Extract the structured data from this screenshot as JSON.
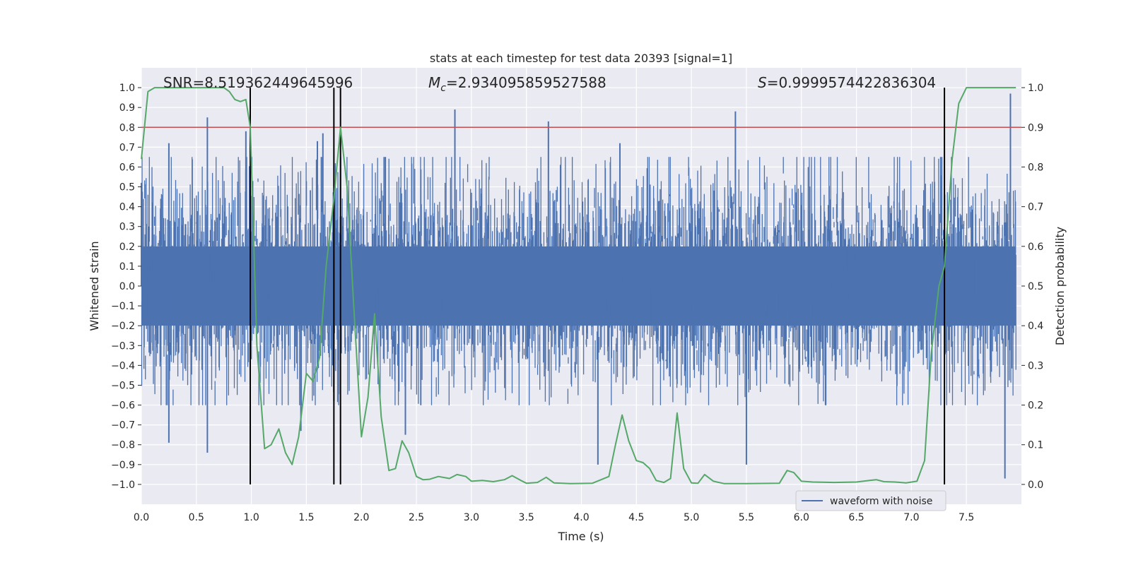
{
  "chart_data": {
    "type": "line",
    "title": "stats at each timestep for test data 20393 [signal=1]",
    "xlabel": "Time (s)",
    "ylabel_left": "Whitened strain",
    "ylabel_right": "Detection probability",
    "xlim": [
      0.0,
      8.0
    ],
    "ylim_left": [
      -1.1,
      1.1
    ],
    "ylim_right": [
      -0.05,
      1.05
    ],
    "x_ticks": [
      "0.0",
      "0.5",
      "1.0",
      "1.5",
      "2.0",
      "2.5",
      "3.0",
      "3.5",
      "4.0",
      "4.5",
      "5.0",
      "5.5",
      "6.0",
      "6.5",
      "7.0",
      "7.5"
    ],
    "x_tick_values": [
      0.0,
      0.5,
      1.0,
      1.5,
      2.0,
      2.5,
      3.0,
      3.5,
      4.0,
      4.5,
      5.0,
      5.5,
      6.0,
      6.5,
      7.0,
      7.5
    ],
    "y_left_ticks": [
      "1.0",
      "0.9",
      "0.8",
      "0.7",
      "0.6",
      "0.5",
      "0.4",
      "0.3",
      "0.2",
      "0.1",
      "0.0",
      "−0.1",
      "−0.2",
      "−0.3",
      "−0.4",
      "−0.5",
      "−0.6",
      "−0.7",
      "−0.8",
      "−0.9",
      "−1.0"
    ],
    "y_left_tick_values": [
      1.0,
      0.9,
      0.8,
      0.7,
      0.6,
      0.5,
      0.4,
      0.3,
      0.2,
      0.1,
      0.0,
      -0.1,
      -0.2,
      -0.3,
      -0.4,
      -0.5,
      -0.6,
      -0.7,
      -0.8,
      -0.9,
      -1.0
    ],
    "y_right_ticks": [
      "1.0",
      "0.9",
      "0.8",
      "0.7",
      "0.6",
      "0.5",
      "0.4",
      "0.3",
      "0.2",
      "0.1",
      "0.0"
    ],
    "y_right_tick_values": [
      1.0,
      0.9,
      0.8,
      0.7,
      0.6,
      0.5,
      0.4,
      0.3,
      0.2,
      0.1,
      0.0
    ],
    "grid": true,
    "legend": {
      "position": "bottom-right",
      "entries": [
        "waveform with noise"
      ]
    },
    "annotations": {
      "snr": "SNR=8.519362449645996",
      "mc_symbol": "M",
      "mc_subscript": "c",
      "mc_value": "=2.934095859527588",
      "s_symbol": "S",
      "s_value": "=0.9999574422836304"
    },
    "threshold": {
      "value_right": 0.9,
      "color": "#c44e52"
    },
    "crossing_lines_x": [
      0.99,
      1.75,
      1.81,
      7.3
    ],
    "colors": {
      "waveform": "#4c72b0",
      "probability": "#55a868",
      "crossing": "#000000",
      "plot_bg": "#eaeaf2",
      "grid": "#ffffff"
    },
    "series": [
      {
        "name": "waveform with noise",
        "kind": "noise-envelope",
        "typical_band": [
          -0.4,
          0.45
        ],
        "extreme_peaks": [
          {
            "x": 0.0,
            "y": 0.52
          },
          {
            "x": 0.25,
            "y": 0.72
          },
          {
            "x": 0.6,
            "y": 0.85
          },
          {
            "x": 0.95,
            "y": 0.78
          },
          {
            "x": 1.6,
            "y": 0.73
          },
          {
            "x": 1.65,
            "y": 0.77
          },
          {
            "x": 2.85,
            "y": 0.89
          },
          {
            "x": 3.7,
            "y": 0.83
          },
          {
            "x": 4.35,
            "y": 0.72
          },
          {
            "x": 5.4,
            "y": 0.88
          },
          {
            "x": 7.9,
            "y": 0.97
          }
        ],
        "extreme_troughs": [
          {
            "x": 0.25,
            "y": -0.79
          },
          {
            "x": 0.6,
            "y": -0.84
          },
          {
            "x": 1.45,
            "y": -0.73
          },
          {
            "x": 1.75,
            "y": -0.58
          },
          {
            "x": 2.4,
            "y": -0.75
          },
          {
            "x": 4.15,
            "y": -0.9
          },
          {
            "x": 5.5,
            "y": -0.9
          },
          {
            "x": 7.85,
            "y": -0.97
          }
        ]
      },
      {
        "name": "",
        "kind": "probability",
        "axis": "right",
        "x": [
          0.0,
          0.06,
          0.12,
          0.2,
          0.4,
          0.6,
          0.75,
          0.8,
          0.85,
          0.9,
          0.95,
          0.99,
          1.05,
          1.12,
          1.18,
          1.25,
          1.31,
          1.37,
          1.43,
          1.5,
          1.56,
          1.62,
          1.68,
          1.75,
          1.81,
          1.87,
          1.93,
          2.0,
          2.06,
          2.12,
          2.18,
          2.25,
          2.31,
          2.37,
          2.43,
          2.5,
          2.56,
          2.62,
          2.7,
          2.8,
          2.87,
          2.95,
          3.0,
          3.1,
          3.2,
          3.3,
          3.37,
          3.45,
          3.5,
          3.6,
          3.68,
          3.75,
          3.9,
          4.1,
          4.25,
          4.31,
          4.37,
          4.43,
          4.5,
          4.56,
          4.62,
          4.68,
          4.75,
          4.81,
          4.87,
          4.93,
          5.0,
          5.06,
          5.12,
          5.2,
          5.3,
          5.5,
          5.8,
          5.87,
          5.93,
          6.0,
          6.1,
          6.3,
          6.5,
          6.62,
          6.68,
          6.75,
          6.85,
          6.95,
          7.05,
          7.12,
          7.18,
          7.25,
          7.3,
          7.37,
          7.43,
          7.5,
          7.6,
          7.75,
          7.95
        ],
        "y": [
          0.82,
          0.99,
          1.0,
          1.0,
          1.0,
          1.0,
          1.0,
          0.99,
          0.97,
          0.965,
          0.97,
          0.9,
          0.35,
          0.09,
          0.1,
          0.14,
          0.08,
          0.05,
          0.12,
          0.28,
          0.26,
          0.32,
          0.55,
          0.72,
          0.9,
          0.75,
          0.45,
          0.12,
          0.22,
          0.43,
          0.17,
          0.035,
          0.04,
          0.11,
          0.08,
          0.02,
          0.012,
          0.013,
          0.02,
          0.015,
          0.025,
          0.02,
          0.008,
          0.01,
          0.007,
          0.012,
          0.022,
          0.01,
          0.003,
          0.005,
          0.018,
          0.004,
          0.002,
          0.003,
          0.02,
          0.1,
          0.175,
          0.11,
          0.06,
          0.055,
          0.04,
          0.01,
          0.005,
          0.015,
          0.18,
          0.04,
          0.004,
          0.003,
          0.025,
          0.008,
          0.002,
          0.002,
          0.003,
          0.035,
          0.03,
          0.008,
          0.006,
          0.005,
          0.006,
          0.01,
          0.012,
          0.007,
          0.006,
          0.004,
          0.008,
          0.06,
          0.33,
          0.5,
          0.55,
          0.82,
          0.96,
          1.0,
          1.0,
          1.0,
          1.0
        ]
      }
    ]
  }
}
